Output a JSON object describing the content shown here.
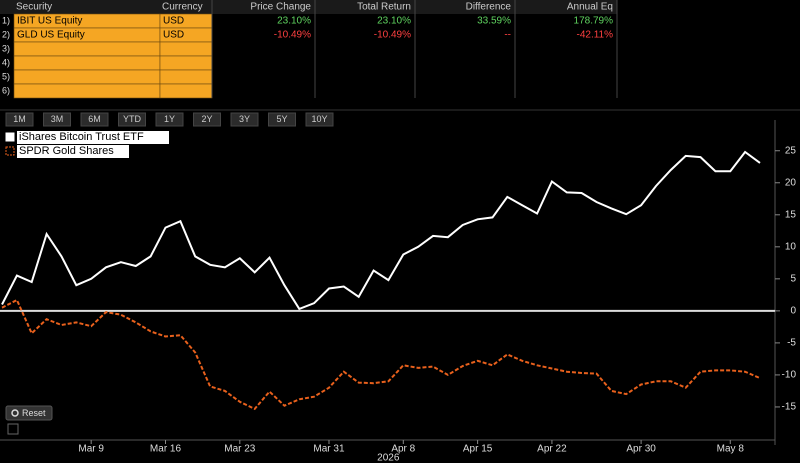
{
  "table": {
    "headers": [
      "Security",
      "Currency",
      "Price Change",
      "Total Return",
      "Difference",
      "Annual Eq"
    ],
    "rows": [
      {
        "number": "1)",
        "security": "IBIT US Equity",
        "currency": "USD",
        "cells": [
          "23.10%",
          "23.10%",
          "33.59%",
          "178.79%"
        ],
        "color": "#5fd35f"
      },
      {
        "number": "2)",
        "security": "GLD US Equity",
        "currency": "USD",
        "cells": [
          "-10.49%",
          "-10.49%",
          "--",
          "-42.11%"
        ],
        "color": "#ff4040"
      },
      {
        "number": "3)"
      },
      {
        "number": "4)"
      },
      {
        "number": "5)"
      },
      {
        "number": "6)"
      }
    ]
  },
  "buttons": [
    "1M",
    "3M",
    "6M",
    "YTD",
    "1Y",
    "2Y",
    "3Y",
    "5Y",
    "10Y"
  ],
  "reset": "Reset",
  "chart_data": {
    "type": "line",
    "categories": [
      null,
      null,
      null,
      null,
      null,
      null,
      "Mar 9",
      null,
      null,
      null,
      null,
      "Mar 16",
      null,
      null,
      null,
      null,
      "Mar 23",
      null,
      null,
      null,
      null,
      null,
      "Mar 31",
      null,
      null,
      null,
      null,
      "Apr 8",
      null,
      null,
      null,
      null,
      "Apr 15",
      null,
      null,
      null,
      null,
      "Apr 22",
      null,
      null,
      null,
      null,
      null,
      "Apr 30",
      null,
      null,
      null,
      null,
      null,
      "May 8",
      null,
      null
    ],
    "xlabel": "2026",
    "series": [
      {
        "name": "iShares Bitcoin Trust ETF",
        "color": "#ffffff",
        "dashed": false,
        "values": [
          1,
          5.5,
          4.5,
          12,
          8.5,
          4,
          5,
          6.8,
          7.6,
          7,
          8.5,
          13,
          14,
          8.5,
          7.2,
          6.8,
          8.2,
          6,
          8.3,
          4,
          0.3,
          1.2,
          3.5,
          3.8,
          2.2,
          6.3,
          4.8,
          8.8,
          10,
          11.7,
          11.5,
          13.4,
          14.3,
          14.6,
          17.8,
          16.5,
          15.2,
          20.2,
          18.5,
          18.4,
          17,
          16,
          15.1,
          16.5,
          19.5,
          22,
          24.2,
          24,
          21.8,
          21.8,
          24.8,
          23.1
        ]
      },
      {
        "name": "SPDR Gold Shares",
        "color": "#e8601c",
        "dashed": true,
        "values": [
          0.5,
          1.7,
          -3.5,
          -1.3,
          -2.2,
          -1.8,
          -2.4,
          -0.2,
          -0.6,
          -1.8,
          -3.2,
          -4,
          -3.8,
          -6.5,
          -11.8,
          -12.5,
          -14.2,
          -15.3,
          -12.6,
          -14.8,
          -13.8,
          -13.4,
          -12,
          -9.5,
          -11.2,
          -11.3,
          -11,
          -8.5,
          -8.9,
          -8.7,
          -10,
          -8.6,
          -7.8,
          -8.5,
          -6.8,
          -7.8,
          -8.5,
          -9,
          -9.5,
          -9.7,
          -9.8,
          -12.5,
          -13,
          -11.5,
          -11,
          -11,
          -12,
          -9.5,
          -9.3,
          -9.3,
          -9.5,
          -10.49
        ]
      }
    ],
    "ylim": [
      -18.6,
      29.8
    ],
    "yticks": [
      -15,
      -10,
      -5,
      0,
      5,
      10,
      15,
      20,
      25
    ],
    "zero_line": true,
    "legend": "upper left"
  }
}
